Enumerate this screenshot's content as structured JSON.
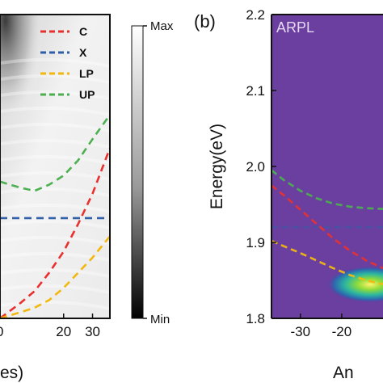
{
  "chart_data": [
    {
      "type": "line",
      "panel": "a",
      "colormap": "grayscale",
      "xlim": [
        -2,
        36
      ],
      "x_ticks": [
        20,
        30
      ],
      "xlabel_fragment": "es)",
      "legend": [
        {
          "name": "C",
          "color": "#e8312f"
        },
        {
          "name": "X",
          "color": "#2f5fa8"
        },
        {
          "name": "LP",
          "color": "#f2b80f"
        },
        {
          "name": "UP",
          "color": "#4caf50"
        }
      ],
      "colorbar": {
        "max_label": "Max",
        "min_label": "Min"
      },
      "series": [
        {
          "name": "C",
          "color": "#e8312f",
          "x": [
            -2,
            5,
            10,
            15,
            20,
            25,
            30,
            36
          ],
          "y_frac": [
            0.0,
            0.05,
            0.09,
            0.15,
            0.22,
            0.31,
            0.41,
            0.56
          ]
        },
        {
          "name": "X",
          "color": "#2f5fa8",
          "x": [
            -2,
            36
          ],
          "y_frac": [
            0.33,
            0.33
          ]
        },
        {
          "name": "LP",
          "color": "#f2b80f",
          "x": [
            -2,
            5,
            10,
            15,
            20,
            25,
            30,
            36
          ],
          "y_frac": [
            0.0,
            0.02,
            0.035,
            0.06,
            0.1,
            0.15,
            0.2,
            0.27
          ]
        },
        {
          "name": "UP",
          "color": "#4caf50",
          "x": [
            -2,
            5,
            10,
            15,
            20,
            25,
            30,
            36
          ],
          "y_frac": [
            0.45,
            0.43,
            0.42,
            0.44,
            0.47,
            0.52,
            0.59,
            0.67
          ]
        }
      ]
    },
    {
      "type": "heatmap",
      "panel": "b",
      "panel_label": "(b)",
      "annotation": "ARPL",
      "colormap": "viridis-like",
      "background_color": "#6a3fa0",
      "ylabel": "Energy(eV)",
      "xlabel_fragment": "An",
      "ylim": [
        1.8,
        2.2
      ],
      "y_ticks": [
        1.8,
        1.9,
        2.0,
        2.1,
        2.2
      ],
      "xlim": [
        -37,
        -10
      ],
      "x_ticks": [
        -30,
        -20
      ],
      "series": [
        {
          "name": "UP",
          "color": "#4caf50",
          "x": [
            -37,
            -34,
            -30,
            -26,
            -22,
            -18,
            -14,
            -10
          ],
          "y": [
            1.995,
            1.982,
            1.968,
            1.958,
            1.951,
            1.947,
            1.945,
            1.944
          ]
        },
        {
          "name": "X",
          "color": "#2f5fa8",
          "x": [
            -37,
            -10
          ],
          "y": [
            1.92,
            1.92
          ]
        },
        {
          "name": "C",
          "color": "#e8312f",
          "x": [
            -37,
            -34,
            -30,
            -26,
            -22,
            -18,
            -14,
            -10
          ],
          "y": [
            1.975,
            1.962,
            1.943,
            1.924,
            1.905,
            1.889,
            1.876,
            1.866
          ]
        },
        {
          "name": "LP",
          "color": "#f2b80f",
          "x": [
            -37,
            -34,
            -30,
            -26,
            -22,
            -18,
            -14,
            -10
          ],
          "y": [
            1.902,
            1.895,
            1.886,
            1.876,
            1.866,
            1.857,
            1.85,
            1.845
          ]
        }
      ]
    }
  ]
}
